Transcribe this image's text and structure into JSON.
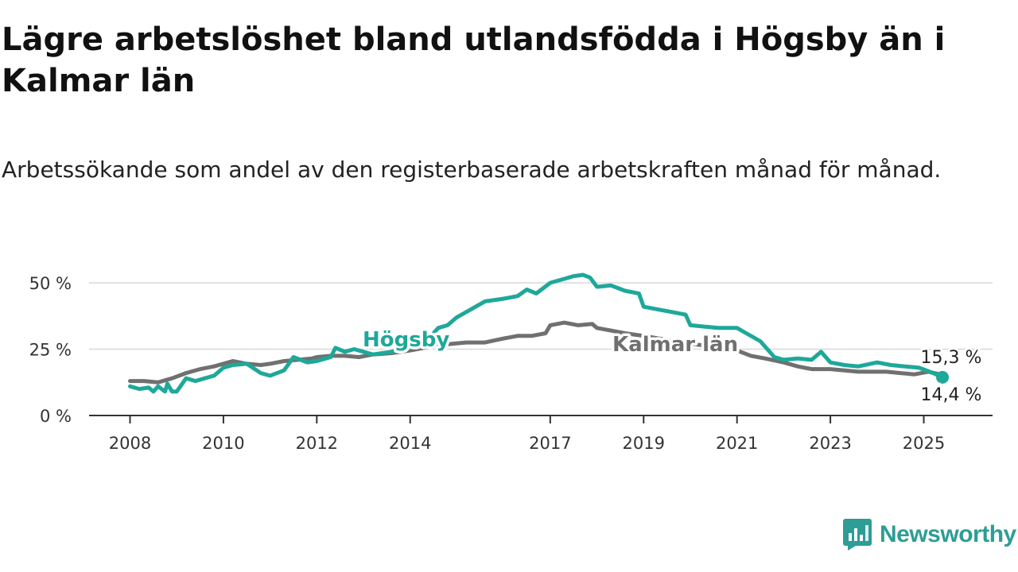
{
  "title": "Lägre arbetslöshet bland utlandsfödda i Högsby än i Kalmar län",
  "subtitle": "Arbetssökande som andel av den registerbaserade arbetskraften månad för månad.",
  "brand": {
    "name": "Newsworthy",
    "icon": "newsworthy-logo-icon",
    "color": "#2d9d95"
  },
  "chart_data": {
    "type": "line",
    "ylim": [
      0,
      60
    ],
    "xlim": [
      2008,
      2026
    ],
    "grid": true,
    "y_ticks": [
      {
        "value": 0,
        "label": "0 %"
      },
      {
        "value": 25,
        "label": "25 %"
      },
      {
        "value": 50,
        "label": "50 %"
      }
    ],
    "x_ticks": [
      {
        "value": 2008,
        "label": "2008"
      },
      {
        "value": 2010,
        "label": "2010"
      },
      {
        "value": 2012,
        "label": "2012"
      },
      {
        "value": 2014,
        "label": "2014"
      },
      {
        "value": 2017,
        "label": "2017"
      },
      {
        "value": 2019,
        "label": "2019"
      },
      {
        "value": 2021,
        "label": "2021"
      },
      {
        "value": 2023,
        "label": "2023"
      },
      {
        "value": 2025,
        "label": "2025"
      }
    ],
    "series": [
      {
        "name": "Högsby",
        "color": "#1ea89a",
        "end_label": "14,4 %",
        "points": [
          [
            2008.0,
            11
          ],
          [
            2008.2,
            10
          ],
          [
            2008.4,
            10.5
          ],
          [
            2008.5,
            9
          ],
          [
            2008.6,
            11
          ],
          [
            2008.75,
            9
          ],
          [
            2008.8,
            12
          ],
          [
            2008.9,
            9
          ],
          [
            2009.0,
            9
          ],
          [
            2009.2,
            14
          ],
          [
            2009.4,
            13
          ],
          [
            2009.6,
            14
          ],
          [
            2009.8,
            15
          ],
          [
            2010.0,
            18
          ],
          [
            2010.2,
            19
          ],
          [
            2010.5,
            19.5
          ],
          [
            2010.8,
            16
          ],
          [
            2011.0,
            15
          ],
          [
            2011.3,
            17
          ],
          [
            2011.5,
            22
          ],
          [
            2011.8,
            20
          ],
          [
            2012.0,
            20.5
          ],
          [
            2012.3,
            22
          ],
          [
            2012.4,
            25.5
          ],
          [
            2012.6,
            24
          ],
          [
            2012.8,
            25
          ],
          [
            2013.0,
            24
          ],
          [
            2013.2,
            23
          ],
          [
            2013.4,
            23.5
          ],
          [
            2013.6,
            24
          ],
          [
            2014.0,
            25.5
          ],
          [
            2014.2,
            27
          ],
          [
            2014.4,
            29
          ],
          [
            2014.6,
            33
          ],
          [
            2014.8,
            34
          ],
          [
            2015.0,
            37
          ],
          [
            2015.3,
            40
          ],
          [
            2015.6,
            43
          ],
          [
            2016.0,
            44
          ],
          [
            2016.3,
            45
          ],
          [
            2016.5,
            47.5
          ],
          [
            2016.7,
            46
          ],
          [
            2017.0,
            50
          ],
          [
            2017.3,
            51.5
          ],
          [
            2017.5,
            52.5
          ],
          [
            2017.7,
            53
          ],
          [
            2017.85,
            52
          ],
          [
            2018.0,
            48.5
          ],
          [
            2018.3,
            49
          ],
          [
            2018.6,
            47
          ],
          [
            2018.9,
            46
          ],
          [
            2019.0,
            41
          ],
          [
            2019.3,
            40
          ],
          [
            2019.6,
            39
          ],
          [
            2019.9,
            38
          ],
          [
            2020.0,
            34
          ],
          [
            2020.3,
            33.5
          ],
          [
            2020.6,
            33
          ],
          [
            2021.0,
            33
          ],
          [
            2021.2,
            31
          ],
          [
            2021.5,
            28
          ],
          [
            2021.8,
            22
          ],
          [
            2022.0,
            21
          ],
          [
            2022.3,
            21.5
          ],
          [
            2022.6,
            21
          ],
          [
            2022.8,
            24
          ],
          [
            2023.0,
            20
          ],
          [
            2023.3,
            19
          ],
          [
            2023.6,
            18.5
          ],
          [
            2024.0,
            20
          ],
          [
            2024.3,
            19
          ],
          [
            2024.6,
            18.5
          ],
          [
            2024.9,
            18
          ],
          [
            2025.2,
            16
          ],
          [
            2025.4,
            14.4
          ]
        ]
      },
      {
        "name": "Kalmar län",
        "color": "#707070",
        "end_label": "15,3 %",
        "points": [
          [
            2008.0,
            13
          ],
          [
            2008.3,
            13
          ],
          [
            2008.6,
            12.5
          ],
          [
            2008.9,
            14
          ],
          [
            2009.2,
            16
          ],
          [
            2009.5,
            17.5
          ],
          [
            2009.8,
            18.5
          ],
          [
            2010.0,
            19.5
          ],
          [
            2010.2,
            20.5
          ],
          [
            2010.5,
            19.5
          ],
          [
            2010.8,
            19
          ],
          [
            2011.0,
            19.5
          ],
          [
            2011.3,
            20.5
          ],
          [
            2011.6,
            21
          ],
          [
            2011.9,
            21.5
          ],
          [
            2012.0,
            22
          ],
          [
            2012.3,
            22.5
          ],
          [
            2012.6,
            22.5
          ],
          [
            2012.9,
            22
          ],
          [
            2013.2,
            23
          ],
          [
            2013.6,
            23.5
          ],
          [
            2014.0,
            24.5
          ],
          [
            2014.3,
            25.5
          ],
          [
            2014.6,
            26.5
          ],
          [
            2014.9,
            27
          ],
          [
            2015.2,
            27.5
          ],
          [
            2015.6,
            27.5
          ],
          [
            2016.0,
            29
          ],
          [
            2016.3,
            30
          ],
          [
            2016.6,
            30
          ],
          [
            2016.9,
            31
          ],
          [
            2017.0,
            34
          ],
          [
            2017.3,
            35
          ],
          [
            2017.6,
            34
          ],
          [
            2017.9,
            34.5
          ],
          [
            2018.0,
            33
          ],
          [
            2018.3,
            32
          ],
          [
            2018.6,
            31
          ],
          [
            2019.0,
            30
          ],
          [
            2019.5,
            28.5
          ],
          [
            2020.0,
            27
          ],
          [
            2020.5,
            26
          ],
          [
            2021.0,
            24.5
          ],
          [
            2021.3,
            22.5
          ],
          [
            2021.6,
            21.5
          ],
          [
            2022.0,
            20
          ],
          [
            2022.3,
            18.5
          ],
          [
            2022.6,
            17.5
          ],
          [
            2023.0,
            17.5
          ],
          [
            2023.3,
            17
          ],
          [
            2023.6,
            16.5
          ],
          [
            2023.9,
            16.5
          ],
          [
            2024.2,
            16.5
          ],
          [
            2024.5,
            16
          ],
          [
            2024.8,
            15.5
          ],
          [
            2025.1,
            16.5
          ],
          [
            2025.4,
            15.3
          ]
        ]
      }
    ]
  }
}
